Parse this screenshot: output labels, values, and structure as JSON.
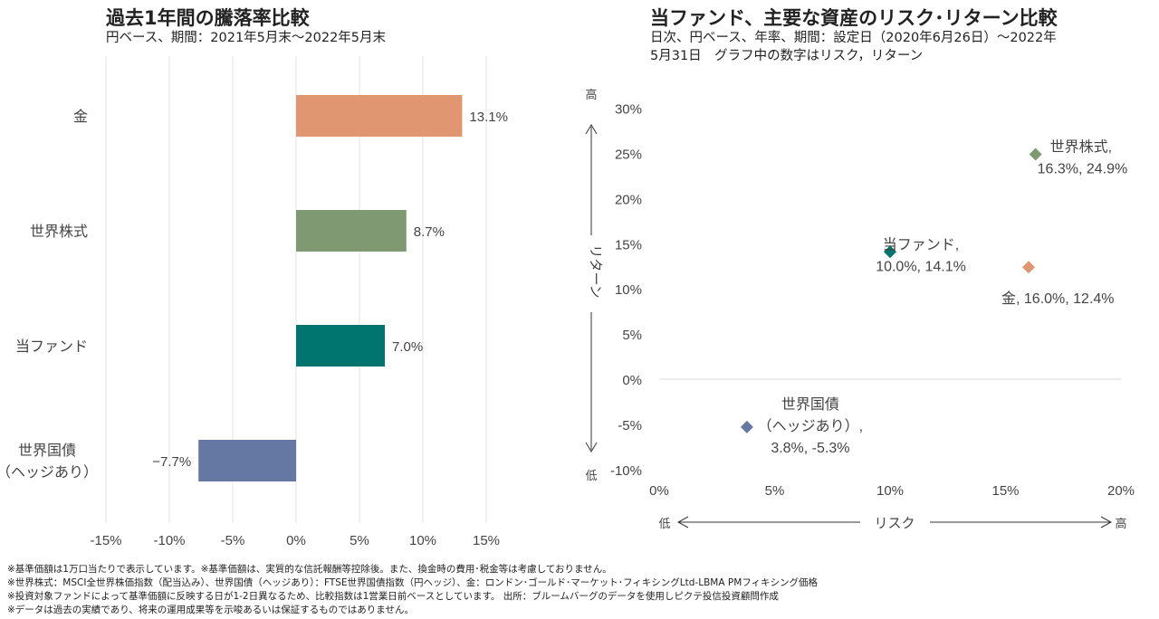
{
  "chart_data": [
    {
      "type": "bar",
      "orientation": "horizontal",
      "title": "過去1年間の騰落率比較",
      "subtitle": "円ベース、期間：2021年5月末～2022年5月末",
      "categories": [
        "金",
        "世界株式",
        "当ファンド",
        "世界国債（ヘッジあり）"
      ],
      "category_lines": [
        [
          "金"
        ],
        [
          "世界株式"
        ],
        [
          "当ファンド"
        ],
        [
          "世界国債",
          "（ヘッジあり）"
        ]
      ],
      "values": [
        13.1,
        8.7,
        7.0,
        -7.7
      ],
      "data_labels": [
        "13.1%",
        "8.7%",
        "7.0%",
        "−7.7%"
      ],
      "colors": [
        "#e09670",
        "#7f9a73",
        "#007570",
        "#6577a3"
      ],
      "xlim": [
        -15,
        15
      ],
      "xticks": [
        -15,
        -10,
        -5,
        0,
        5,
        10,
        15
      ],
      "xtick_labels": [
        "-15%",
        "-10%",
        "-5%",
        "0%",
        "5%",
        "10%",
        "15%"
      ],
      "grid": "vertical"
    },
    {
      "type": "scatter",
      "title": "当ファンド、主要な資産のリスク･リターン比較",
      "subtitle_lines": [
        "日次、円ベース、年率、期間：設定日（2020年6月26日）～2022年",
        "5月31日　グラフ中の数字はリスク，リターン"
      ],
      "xlabel": "リスク",
      "xlabel_low": "低",
      "xlabel_high": "高",
      "ylabel": "リターン",
      "ylabel_low": "低",
      "ylabel_high": "高",
      "xlim": [
        0,
        20
      ],
      "ylim": [
        -10,
        30
      ],
      "xticks": [
        0,
        5,
        10,
        15,
        20
      ],
      "xtick_labels": [
        "0%",
        "5%",
        "10%",
        "15%",
        "20%"
      ],
      "yticks": [
        -10,
        -5,
        0,
        5,
        10,
        15,
        20,
        25,
        30
      ],
      "ytick_labels": [
        "-10%",
        "-5%",
        "0%",
        "5%",
        "10%",
        "15%",
        "20%",
        "25%",
        "30%"
      ],
      "marker": "diamond",
      "points": [
        {
          "name": "世界株式",
          "x": 16.3,
          "y": 24.9,
          "label_lines": [
            "世界株式,",
            "16.3%, 24.9%"
          ],
          "color": "#7f9a73"
        },
        {
          "name": "当ファンド",
          "x": 10.0,
          "y": 14.1,
          "label_lines": [
            "当ファンド,",
            "10.0%, 14.1%"
          ],
          "color": "#007570"
        },
        {
          "name": "金",
          "x": 16.0,
          "y": 12.4,
          "label_lines": [
            "金, 16.0%, 12.4%"
          ],
          "color": "#e09670"
        },
        {
          "name": "世界国債（ヘッジあり）",
          "x": 3.8,
          "y": -5.3,
          "label_lines": [
            "世界国債",
            "（ヘッジあり）,",
            "3.8%, -5.3%"
          ],
          "color": "#6577a3"
        }
      ]
    }
  ],
  "notes": [
    "※基準価額は1万口当たりで表示しています。※基準価額は、実質的な信託報酬等控除後。また、換金時の費用･税金等は考慮しておりません。",
    "※世界株式：MSCI全世界株価指数（配当込み）、世界国債（ヘッジあり）：FTSE世界国債指数（円ヘッジ）、金：ロンドン･ゴールド･マーケット･フィキシングLtd-LBMA PMフィキシング価格",
    "※投資対象ファンドによって基準価額に反映する日が1-2日異なるため、比較指数は1営業日前ベースとしています。 出所：ブルームバーグのデータを使用しピクテ投信投資顧問作成",
    "※データは過去の実績であり、将来の運用成果等を示唆あるいは保証するものではありません。"
  ]
}
